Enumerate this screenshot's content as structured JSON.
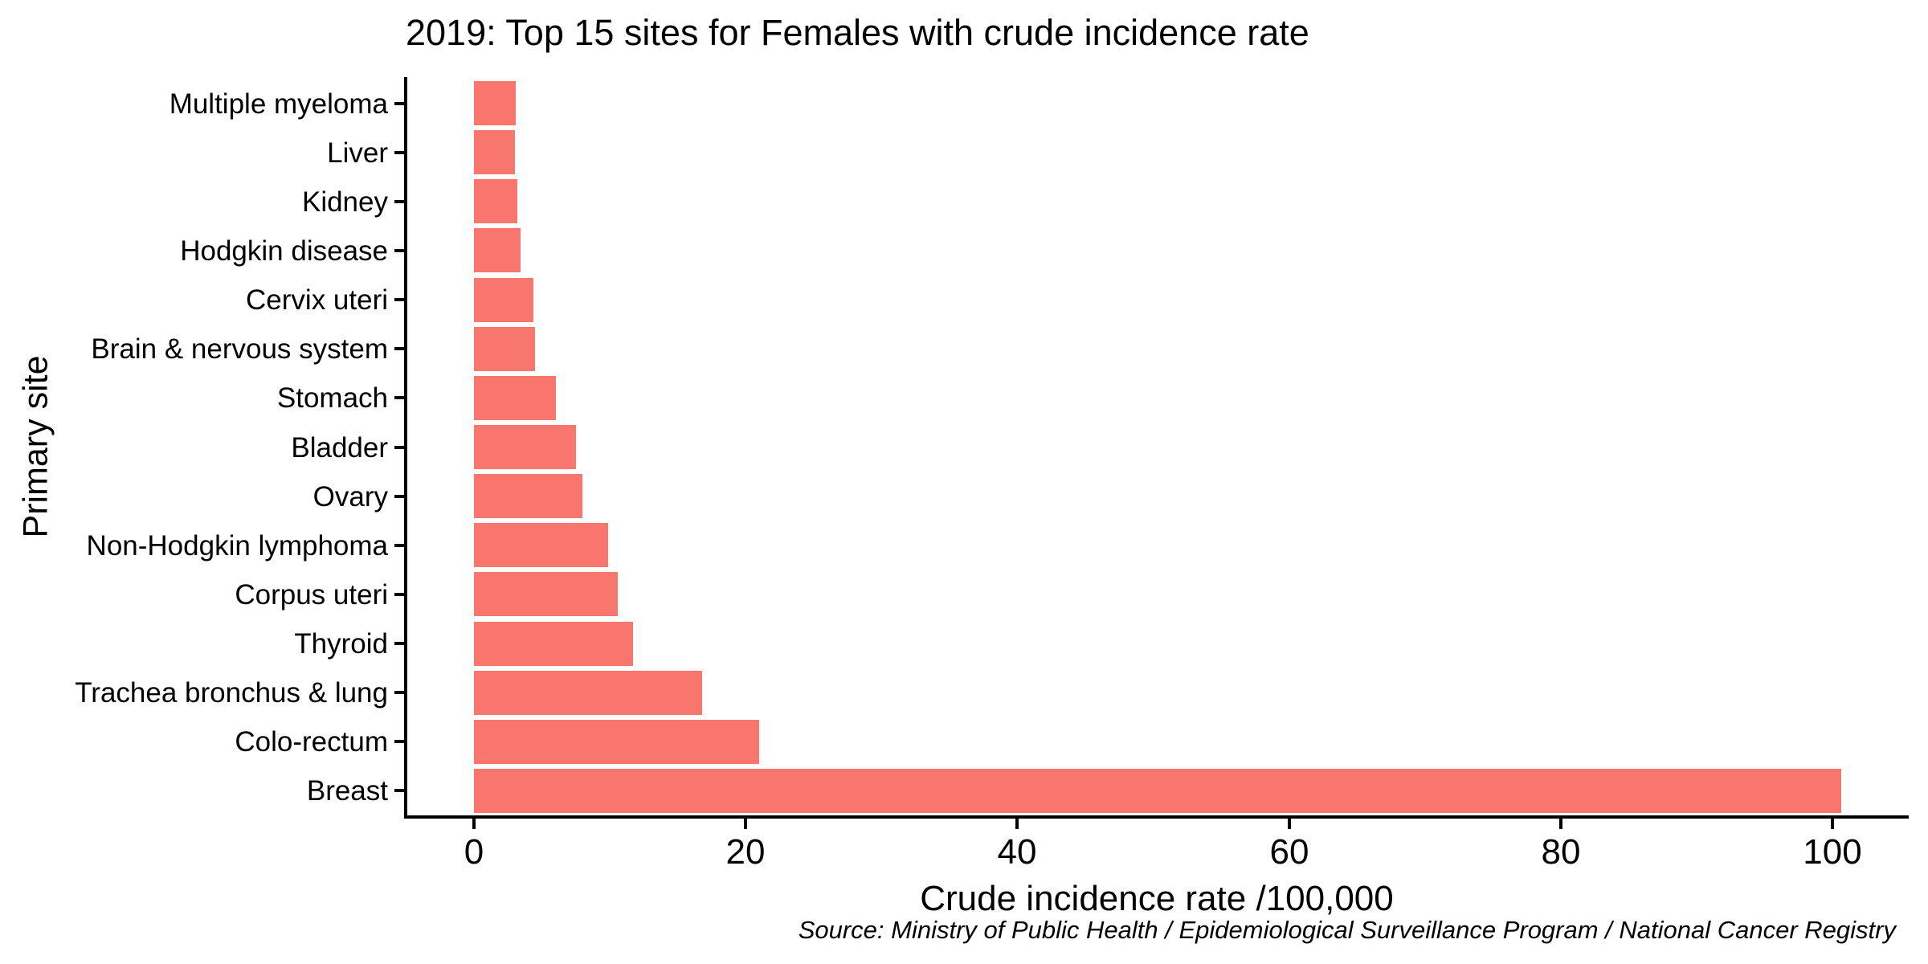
{
  "chart_data": {
    "type": "bar",
    "orientation": "horizontal",
    "title": "2019: Top 15 sites for Females with crude incidence rate",
    "xlabel": "Crude incidence rate /100,000",
    "ylabel": "Primary site",
    "source": "Source: Ministry of Public Health / Epidemiological Surveillance Program / National Cancer Registry",
    "category_order": "top-to-bottom",
    "categories": [
      "Multiple myeloma",
      "Liver",
      "Kidney",
      "Hodgkin disease",
      "Cervix uteri",
      "Brain & nervous system",
      "Stomach",
      "Bladder",
      "Ovary",
      "Non-Hodgkin lymphoma",
      "Corpus uteri",
      "Thyroid",
      "Trachea bronchus & lung",
      "Colo-rectum",
      "Breast"
    ],
    "values": [
      3.1,
      3.0,
      3.2,
      3.4,
      4.4,
      4.5,
      6.0,
      7.5,
      8.0,
      9.9,
      10.6,
      11.7,
      16.8,
      21.0,
      100.6
    ],
    "xticks": [
      "0",
      "20",
      "40",
      "60",
      "80",
      "100"
    ],
    "xtick_values": [
      0,
      20,
      40,
      60,
      80,
      100
    ],
    "xlim": [
      -5,
      105.6
    ],
    "bar_color": "#F8766D",
    "axis_color": "#000000",
    "text_color": "#000000",
    "background": "#FFFFFF",
    "grid": false,
    "legend": "none"
  }
}
